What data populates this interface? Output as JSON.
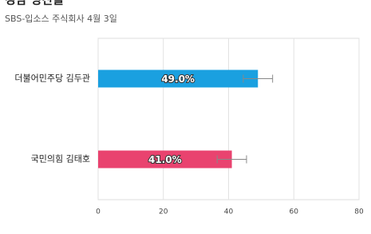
{
  "chart_data": {
    "type": "bar",
    "orientation": "horizontal",
    "title": "경남 양산을",
    "subtitle": "SBS-입소스 주식회사 4월 3일",
    "categories": [
      "더불어민주당 김두관",
      "국민의힘 김태호"
    ],
    "values": [
      49.0,
      41.0
    ],
    "value_labels": [
      "49.0%",
      "41.0%"
    ],
    "errors": [
      4.5,
      4.5
    ],
    "colors": [
      "#1aa0e0",
      "#e9436f"
    ],
    "xlim": [
      0,
      80
    ],
    "xticks": [
      0,
      20,
      40,
      60,
      80
    ],
    "grid": true
  }
}
